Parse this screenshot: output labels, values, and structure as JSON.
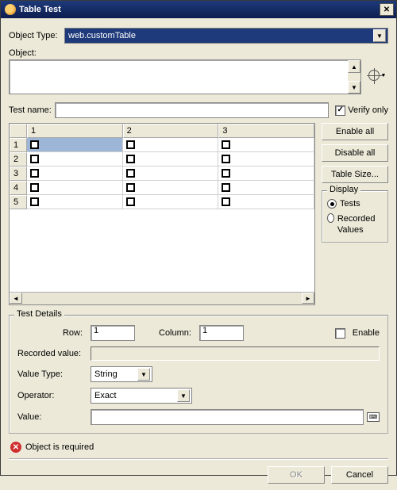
{
  "window": {
    "title": "Table Test"
  },
  "objectType": {
    "label": "Object Type:",
    "value": "web.customTable"
  },
  "object": {
    "label": "Object:"
  },
  "testName": {
    "label": "Test name:"
  },
  "verifyOnly": {
    "label": "Verify only",
    "checked": true
  },
  "table": {
    "columns": [
      "1",
      "2",
      "3"
    ],
    "rows": [
      "1",
      "2",
      "3",
      "4",
      "5"
    ],
    "selected": {
      "row": 0,
      "col": 0
    }
  },
  "sideButtons": {
    "enableAll": "Enable all",
    "disableAll": "Disable all",
    "tableSize": "Table Size..."
  },
  "displayGroup": {
    "legend": "Display",
    "tests": "Tests",
    "recorded": "Recorded Values",
    "selected": "tests"
  },
  "details": {
    "legend": "Test Details",
    "rowLabel": "Row:",
    "rowValue": "1",
    "colLabel": "Column:",
    "colValue": "1",
    "enable": "Enable",
    "recordedValueLabel": "Recorded value:",
    "valueTypeLabel": "Value Type:",
    "valueType": "String",
    "operatorLabel": "Operator:",
    "operator": "Exact",
    "valueLabel": "Value:"
  },
  "error": "Object is required",
  "footer": {
    "ok": "OK",
    "cancel": "Cancel"
  }
}
